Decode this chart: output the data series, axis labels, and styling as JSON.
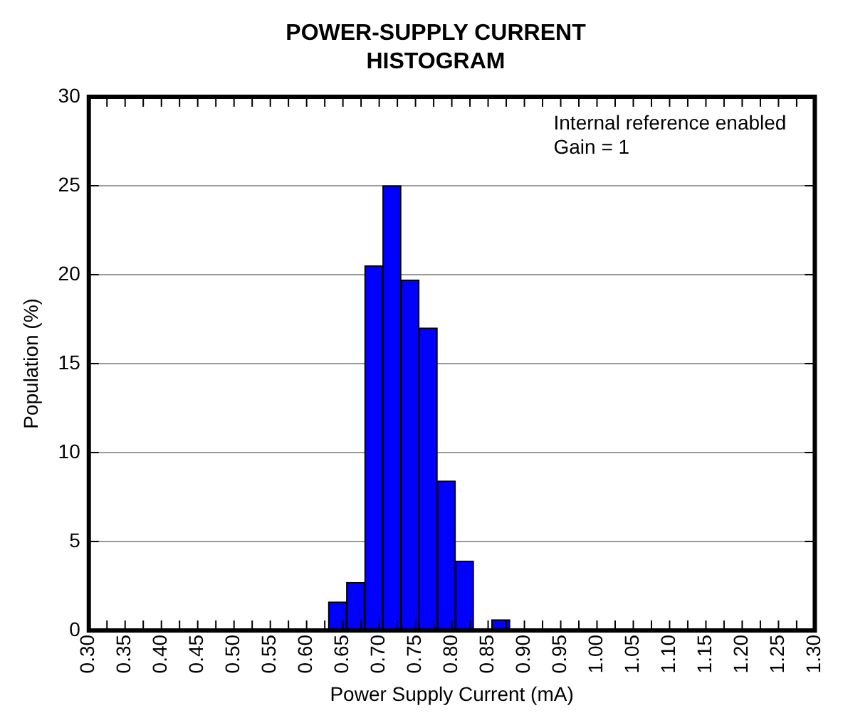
{
  "chart_data": {
    "type": "histogram",
    "title": "POWER-SUPPLY CURRENT HISTOGRAM",
    "xlabel": "Power Supply Current (mA)",
    "ylabel": "Population (%)",
    "bins": [
      0.63,
      0.655,
      0.68,
      0.705,
      0.73,
      0.755,
      0.78,
      0.805,
      0.83,
      0.855,
      0.88,
      0.905,
      0.93,
      0.955,
      0.98,
      1.005,
      1.03,
      1.055,
      1.08,
      1.105,
      1.13,
      1.155
    ],
    "values": [
      1.6,
      2.7,
      20.5,
      25,
      19.7,
      17,
      8.4,
      3.9,
      0.1,
      0.6,
      0.1,
      0,
      0,
      0,
      0,
      0,
      0,
      0,
      0,
      0,
      0.1
    ],
    "color": "#0000ff",
    "xlim": [
      0.3,
      1.3
    ],
    "xticks": [
      {
        "value": 0.3,
        "label": "0.30"
      },
      {
        "value": 0.325,
        "label": null
      },
      {
        "value": 0.35,
        "label": "0.35"
      },
      {
        "value": 0.375,
        "label": null
      },
      {
        "value": 0.4,
        "label": "0.40"
      },
      {
        "value": 0.425,
        "label": null
      },
      {
        "value": 0.45,
        "label": "0.45"
      },
      {
        "value": 0.475,
        "label": null
      },
      {
        "value": 0.5,
        "label": "0.50"
      },
      {
        "value": 0.525,
        "label": null
      },
      {
        "value": 0.55,
        "label": "0.55"
      },
      {
        "value": 0.575,
        "label": null
      },
      {
        "value": 0.6,
        "label": "0.60"
      },
      {
        "value": 0.625,
        "label": null
      },
      {
        "value": 0.65,
        "label": "0.65"
      },
      {
        "value": 0.675,
        "label": null
      },
      {
        "value": 0.7,
        "label": "0.70"
      },
      {
        "value": 0.725,
        "label": null
      },
      {
        "value": 0.75,
        "label": "0.75"
      },
      {
        "value": 0.775,
        "label": null
      },
      {
        "value": 0.8,
        "label": "0.80"
      },
      {
        "value": 0.825,
        "label": null
      },
      {
        "value": 0.85,
        "label": "0.85"
      },
      {
        "value": 0.875,
        "label": null
      },
      {
        "value": 0.9,
        "label": "0.90"
      },
      {
        "value": 0.925,
        "label": null
      },
      {
        "value": 0.95,
        "label": "0.95"
      },
      {
        "value": 0.975,
        "label": null
      },
      {
        "value": 1.0,
        "label": "1.00"
      },
      {
        "value": 1.025,
        "label": null
      },
      {
        "value": 1.05,
        "label": "1.05"
      },
      {
        "value": 1.075,
        "label": null
      },
      {
        "value": 1.1,
        "label": "1.10"
      },
      {
        "value": 1.125,
        "label": null
      },
      {
        "value": 1.15,
        "label": "1.15"
      },
      {
        "value": 1.175,
        "label": null
      },
      {
        "value": 1.2,
        "label": "1.20"
      },
      {
        "value": 1.225,
        "label": null
      },
      {
        "value": 1.25,
        "label": "1.25"
      },
      {
        "value": 1.275,
        "label": null
      },
      {
        "value": 1.3,
        "label": "1.30"
      }
    ],
    "ylim": [
      0,
      30
    ],
    "yticks": [
      0,
      5,
      10,
      15,
      20,
      25,
      30
    ],
    "grid": "y",
    "annotations": [
      "Internal reference enabled",
      "Gain = 1"
    ]
  }
}
